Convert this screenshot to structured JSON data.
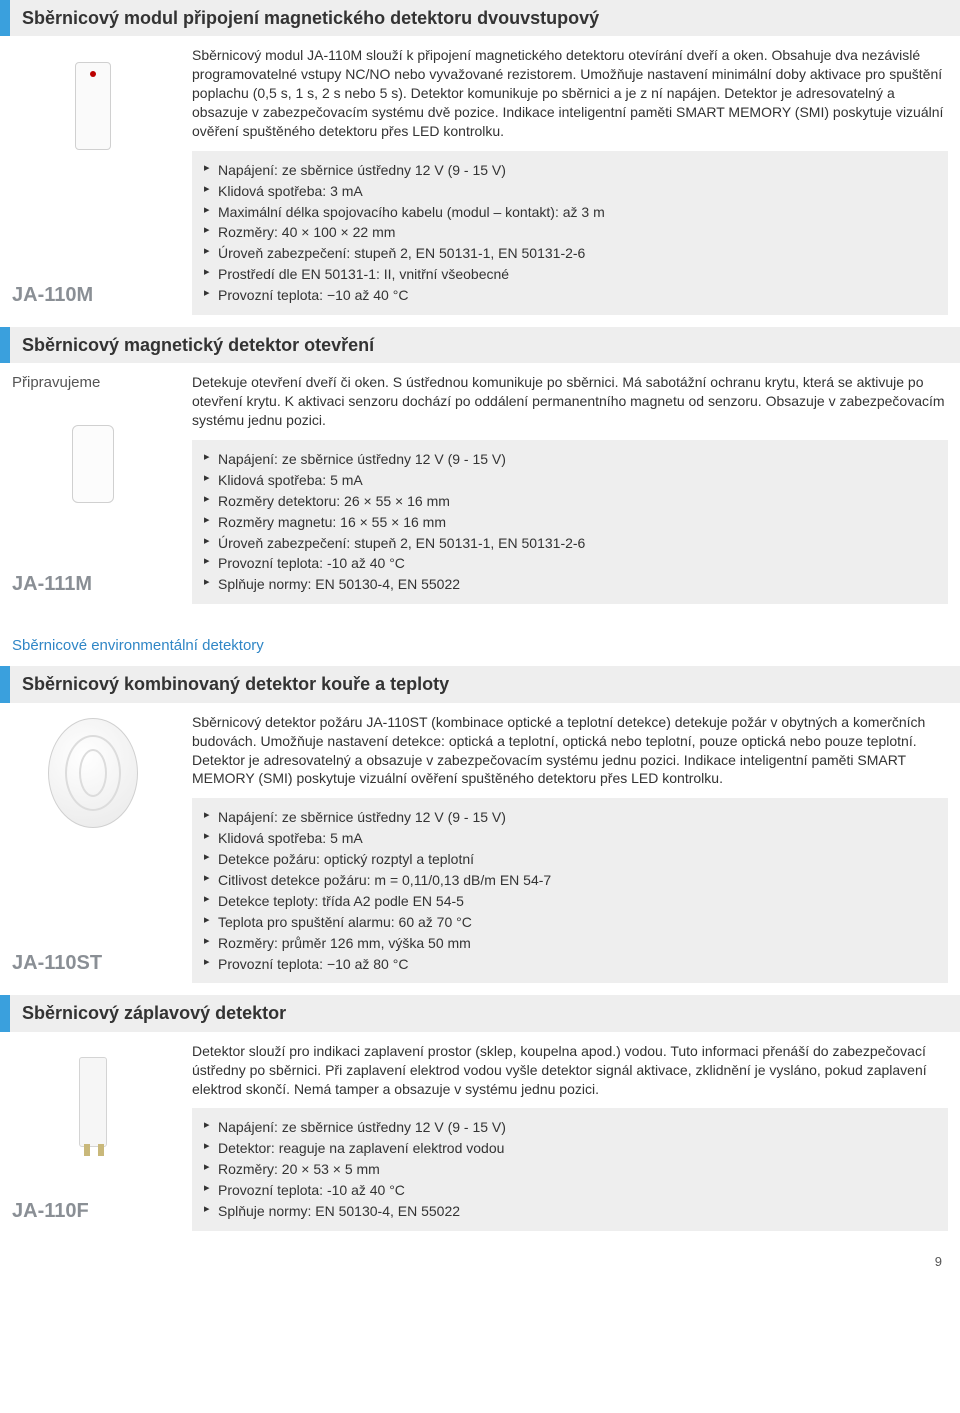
{
  "page_number": "9",
  "category_title": "Sběrnicové environmentální detektory",
  "sections": [
    {
      "title": "Sběrnicový modul připojení magnetického detektoru dvouvstupový",
      "model": "JA-110M",
      "status": "",
      "icon": "rect-tall",
      "description": "Sběrnicový modul JA-110M slouží k připojení magnetického detektoru otevírání dveří a oken. Obsahuje dva nezávislé programovatelné vstupy NC/NO nebo vyvažované rezistorem. Umožňuje nastavení minimální doby aktivace pro spuštění poplachu (0,5 s, 1 s, 2 s nebo 5 s). Detektor komunikuje po sběrnici a je z ní napájen. Detektor je adresovatelný a obsazuje v zabezpečovacím systému dvě pozice. Indikace inteligentní paměti SMART MEMORY (SMI) poskytuje vizuální ověření spuštěného detektoru přes LED kontrolku.",
      "specs": [
        "Napájení: ze sběrnice ústředny 12 V (9 - 15 V)",
        "Klidová spotřeba: 3 mA",
        "Maximální délka spojovacího kabelu (modul – kontakt): až 3 m",
        "Rozměry: 40 × 100 × 22 mm",
        "Úroveň zabezpečení: stupeň 2, EN 50131-1, EN 50131-2-6",
        "Prostředí dle EN 50131-1: II, vnitřní všeobecné",
        "Provozní teplota: −10 až 40 °C"
      ]
    },
    {
      "title": "Sběrnicový magnetický detektor otevření",
      "model": "JA-111M",
      "status": "Připravujeme",
      "icon": "rect-small",
      "description": "Detekuje otevření dveří či oken. S ústřednou komunikuje po sběrnici. Má sabotážní ochranu krytu, která se aktivuje po otevření krytu. K aktivaci senzoru dochází po oddálení permanentního magnetu od senzoru. Obsazuje v zabezpečovacím systému jednu pozici.",
      "specs": [
        "Napájení: ze sběrnice ústředny 12 V (9 - 15 V)",
        "Klidová spotřeba: 5 mA",
        "Rozměry detektoru: 26 × 55 × 16 mm",
        "Rozměry magnetu: 16 × 55 × 16 mm",
        "Úroveň zabezpečení: stupeň 2, EN 50131-1, EN 50131-2-6",
        "Provozní teplota: -10 až 40 °C",
        "Splňuje normy: EN 50130-4, EN 55022"
      ]
    },
    {
      "title": "Sběrnicový kombinovaný detektor kouře a teploty",
      "model": "JA-110ST",
      "status": "",
      "icon": "smoke",
      "description": "Sběrnicový detektor požáru JA-110ST (kombinace optické a teplotní detekce) detekuje požár v obytných a komerčních budovách. Umožňuje nastavení detekce: optická a teplotní, optická nebo teplotní, pouze optická nebo pouze teplotní. Detektor je adresovatelný a obsazuje v zabezpečovacím systému jednu pozici. Indikace inteligentní paměti SMART MEMORY (SMI) poskytuje vizuální ověření spuštěného detektoru přes LED kontrolku.",
      "specs": [
        "Napájení: ze sběrnice ústředny 12 V (9 - 15 V)",
        "Klidová spotřeba: 5 mA",
        "Detekce požáru: optický rozptyl a teplotní",
        "Citlivost detekce požáru: m = 0,11/0,13 dB/m EN 54-7",
        "Detekce teploty: třída A2 podle EN 54-5",
        "Teplota pro spuštění alarmu: 60 až 70 °C",
        "Rozměry: průměr 126 mm, výška 50 mm",
        "Provozní teplota: −10 až 80 °C"
      ]
    },
    {
      "title": "Sběrnicový záplavový detektor",
      "model": "JA-110F",
      "status": "",
      "icon": "flood",
      "description": "Detektor slouží pro indikaci zaplavení prostor (sklep, koupelna apod.) vodou. Tuto informaci přenáší do zabezpečovací ústředny po sběrnici. Při zaplavení elektrod vodou vyšle detektor signál aktivace, zklidnění je vysláno, pokud zaplavení elektrod skončí. Nemá tamper a obsazuje v systému jednu pozici.",
      "specs": [
        "Napájení: ze sběrnice ústředny 12 V (9 - 15 V)",
        "Detektor: reaguje na zaplavení elektrod vodou",
        "Rozměry: 20 × 53 × 5 mm",
        "Provozní teplota: -10 až 40 °C",
        "Splňuje normy: EN 50130-4, EN 55022"
      ]
    }
  ]
}
